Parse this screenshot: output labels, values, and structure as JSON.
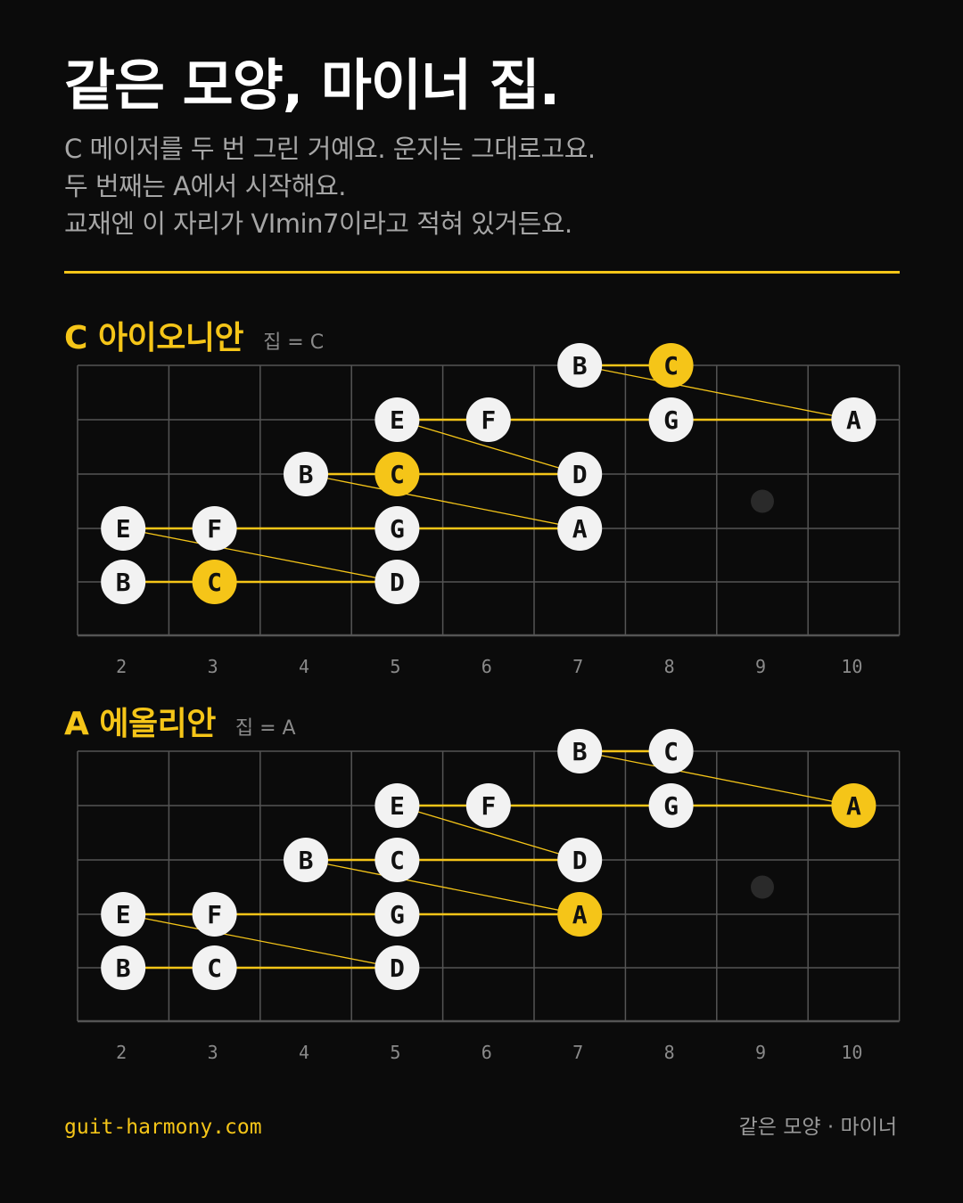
{
  "header": {
    "title": "같은 모양, 마이너 집.",
    "subtitle_lines": [
      "C 메이저를 두 번 그린 거예요. 운지는 그대로고요.",
      "두 번째는 A에서 시작해요.",
      "교재엔 이 자리가 VImin7이라고 적혀 있거든요."
    ]
  },
  "colors": {
    "background": "#0b0b0b",
    "accent": "#f5c518",
    "note_fill": "#f2f2f2",
    "grid": "#555555",
    "muted_text": "#8a8a8a"
  },
  "fret_numbers": [
    "2",
    "3",
    "4",
    "5",
    "6",
    "7",
    "8",
    "9",
    "10"
  ],
  "diagrams": [
    {
      "title": "C 아이오니안",
      "key_label": "집 = C",
      "home": "C",
      "notes": [
        {
          "string": 1,
          "fret": 7,
          "label": "B"
        },
        {
          "string": 1,
          "fret": 8,
          "label": "C"
        },
        {
          "string": 2,
          "fret": 5,
          "label": "E"
        },
        {
          "string": 2,
          "fret": 6,
          "label": "F"
        },
        {
          "string": 2,
          "fret": 8,
          "label": "G"
        },
        {
          "string": 2,
          "fret": 10,
          "label": "A"
        },
        {
          "string": 3,
          "fret": 4,
          "label": "B"
        },
        {
          "string": 3,
          "fret": 5,
          "label": "C"
        },
        {
          "string": 3,
          "fret": 7,
          "label": "D"
        },
        {
          "string": 4,
          "fret": 2,
          "label": "E"
        },
        {
          "string": 4,
          "fret": 3,
          "label": "F"
        },
        {
          "string": 4,
          "fret": 5,
          "label": "G"
        },
        {
          "string": 4,
          "fret": 7,
          "label": "A"
        },
        {
          "string": 5,
          "fret": 2,
          "label": "B"
        },
        {
          "string": 5,
          "fret": 3,
          "label": "C"
        },
        {
          "string": 5,
          "fret": 5,
          "label": "D"
        }
      ]
    },
    {
      "title": "A 에올리안",
      "key_label": "집 = A",
      "home": "A",
      "notes": [
        {
          "string": 1,
          "fret": 7,
          "label": "B"
        },
        {
          "string": 1,
          "fret": 8,
          "label": "C"
        },
        {
          "string": 2,
          "fret": 5,
          "label": "E"
        },
        {
          "string": 2,
          "fret": 6,
          "label": "F"
        },
        {
          "string": 2,
          "fret": 8,
          "label": "G"
        },
        {
          "string": 2,
          "fret": 10,
          "label": "A"
        },
        {
          "string": 3,
          "fret": 4,
          "label": "B"
        },
        {
          "string": 3,
          "fret": 5,
          "label": "C"
        },
        {
          "string": 3,
          "fret": 7,
          "label": "D"
        },
        {
          "string": 4,
          "fret": 2,
          "label": "E"
        },
        {
          "string": 4,
          "fret": 3,
          "label": "F"
        },
        {
          "string": 4,
          "fret": 5,
          "label": "G"
        },
        {
          "string": 4,
          "fret": 7,
          "label": "A"
        },
        {
          "string": 5,
          "fret": 2,
          "label": "B"
        },
        {
          "string": 5,
          "fret": 3,
          "label": "C"
        },
        {
          "string": 5,
          "fret": 5,
          "label": "D"
        }
      ]
    }
  ],
  "footer": {
    "site": "guit-harmony.com",
    "caption": "같은 모양 · 마이너"
  }
}
